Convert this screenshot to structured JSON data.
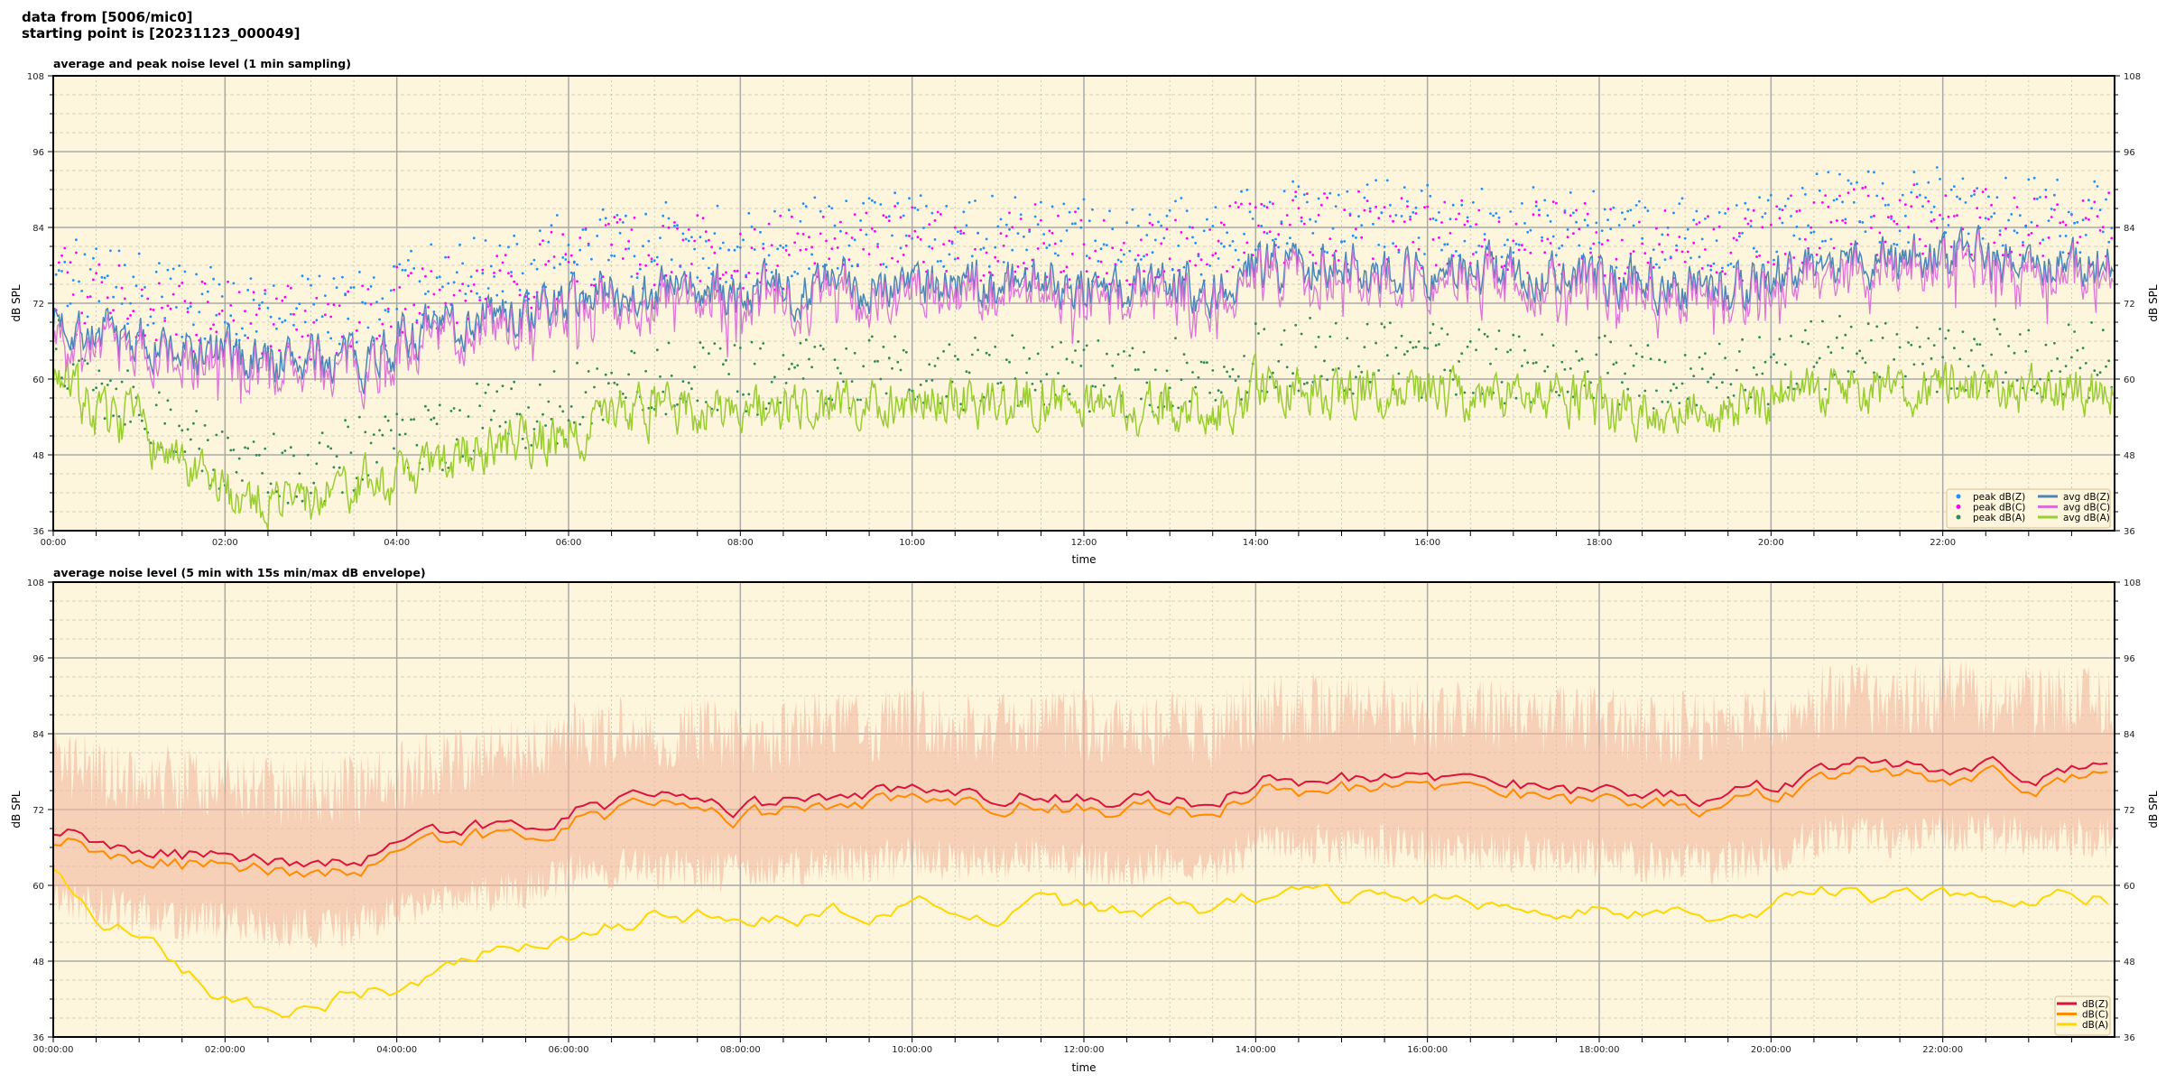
{
  "header": {
    "line1": "data from [5006/mic0]",
    "line2": "starting point is [20231123_000049]"
  },
  "style": {
    "plot_background": "#fdf6dc",
    "major_grid": "#a9a9a9",
    "minor_grid": "#c8c0b0"
  },
  "chart_data": [
    {
      "type": "line+scatter",
      "title": "average and peak noise level (1 min sampling)",
      "xlabel": "time",
      "ylabel": "dB SPL",
      "ylim": [
        36,
        108
      ],
      "yticks": [
        "36",
        "48",
        "60",
        "72",
        "84",
        "96",
        "108"
      ],
      "xlim": [
        "00:00",
        "24:00"
      ],
      "xticks": [
        "00:00",
        "02:00",
        "04:00",
        "06:00",
        "08:00",
        "10:00",
        "12:00",
        "14:00",
        "16:00",
        "18:00",
        "20:00",
        "22:00"
      ],
      "grid": true,
      "legend": "lower-right",
      "x": [
        "00:00",
        "00:30",
        "01:00",
        "01:30",
        "02:00",
        "02:30",
        "03:00",
        "03:30",
        "04:00",
        "04:30",
        "05:00",
        "05:30",
        "06:00",
        "06:30",
        "07:00",
        "07:30",
        "08:00",
        "08:30",
        "09:00",
        "09:30",
        "10:00",
        "10:30",
        "11:00",
        "11:30",
        "12:00",
        "12:30",
        "13:00",
        "13:30",
        "14:00",
        "14:30",
        "15:00",
        "15:30",
        "16:00",
        "16:30",
        "17:00",
        "17:30",
        "18:00",
        "18:30",
        "19:00",
        "19:30",
        "20:00",
        "20:30",
        "21:00",
        "21:30",
        "22:00",
        "22:30",
        "23:00",
        "23:30"
      ],
      "series": [
        {
          "name": "peak dB(Z)",
          "kind": "scatter",
          "color": "#1e90ff",
          "values": [
            78,
            75,
            74,
            72,
            72,
            71,
            71,
            71,
            74,
            76,
            78,
            78,
            81,
            82,
            82,
            82,
            81,
            82,
            83,
            83,
            84,
            83,
            83,
            84,
            83,
            82,
            83,
            82,
            86,
            86,
            86,
            86,
            85,
            85,
            85,
            84,
            84,
            83,
            83,
            83,
            84,
            87,
            87,
            87,
            88,
            87,
            86,
            86
          ]
        },
        {
          "name": "peak dB(C)",
          "kind": "scatter",
          "color": "#ff00ff",
          "values": [
            76,
            73,
            72,
            70,
            70,
            69,
            69,
            69,
            72,
            74,
            76,
            76,
            79,
            80,
            80,
            80,
            79,
            80,
            81,
            81,
            82,
            81,
            81,
            82,
            81,
            80,
            81,
            80,
            84,
            84,
            84,
            84,
            83,
            83,
            83,
            82,
            82,
            81,
            81,
            81,
            82,
            85,
            85,
            85,
            86,
            85,
            84,
            84
          ]
        },
        {
          "name": "peak dB(A)",
          "kind": "scatter",
          "color": "#2e8b57",
          "values": [
            67,
            59,
            58,
            50,
            47,
            46,
            46,
            48,
            49,
            51,
            54,
            55,
            56,
            59,
            60,
            60,
            60,
            60,
            61,
            61,
            62,
            61,
            61,
            62,
            61,
            60,
            61,
            60,
            63,
            64,
            63,
            63,
            63,
            62,
            62,
            62,
            61,
            60,
            60,
            60,
            62,
            64,
            64,
            63,
            64,
            64,
            63,
            63
          ]
        },
        {
          "name": "avg dB(Z)",
          "kind": "line",
          "color": "#4a86b8",
          "values": [
            70,
            67,
            66,
            64,
            64,
            63,
            63,
            63,
            66,
            68,
            70,
            70,
            73,
            74,
            74,
            74,
            73,
            74,
            75,
            75,
            76,
            75,
            75,
            76,
            75,
            74,
            75,
            74,
            78,
            78,
            78,
            78,
            77,
            77,
            77,
            76,
            76,
            75,
            75,
            75,
            76,
            79,
            79,
            79,
            80,
            79,
            78,
            78
          ]
        },
        {
          "name": "avg dB(C)",
          "kind": "line",
          "color": "#da70d6",
          "values": [
            68.5,
            65.5,
            64.5,
            62.5,
            62.5,
            61.5,
            61.5,
            61.5,
            64.5,
            66.5,
            68.5,
            68.5,
            71.5,
            72.5,
            72.5,
            72.5,
            71.5,
            72.5,
            73.5,
            73.5,
            74.5,
            73.5,
            73.5,
            74.5,
            73.5,
            72.5,
            73.5,
            72.5,
            76.5,
            76.5,
            76.5,
            76.5,
            75.5,
            75.5,
            75.5,
            74.5,
            74.5,
            73.5,
            73.5,
            73.5,
            74.5,
            77.5,
            77.5,
            77.5,
            78.5,
            77.5,
            76.5,
            76.5
          ]
        },
        {
          "name": "avg dB(A)",
          "kind": "line",
          "color": "#9acd32",
          "values": [
            62,
            54,
            53,
            45,
            42,
            41,
            41,
            43,
            44,
            46,
            49,
            50,
            51,
            54,
            55,
            55,
            55,
            55,
            56,
            56,
            57,
            56,
            56,
            57,
            56,
            55,
            56,
            55,
            58,
            59,
            58,
            58,
            58,
            57,
            57,
            57,
            56,
            55,
            55,
            55,
            57,
            59,
            59,
            58,
            59,
            59,
            58,
            58
          ]
        }
      ]
    },
    {
      "type": "line+envelope",
      "title": "average noise level (5 min with 15s min/max dB envelope)",
      "xlabel": "time",
      "ylabel": "dB SPL",
      "ylim": [
        36,
        108
      ],
      "yticks": [
        "36",
        "48",
        "60",
        "72",
        "84",
        "96",
        "108"
      ],
      "xlim": [
        "00:00:00",
        "24:00:00"
      ],
      "xticks": [
        "00:00:00",
        "02:00:00",
        "04:00:00",
        "06:00:00",
        "08:00:00",
        "10:00:00",
        "12:00:00",
        "14:00:00",
        "16:00:00",
        "18:00:00",
        "20:00:00",
        "22:00:00"
      ],
      "grid": true,
      "legend": "lower-right",
      "envelope_color": "#f4b8a0",
      "x": [
        "00:00",
        "00:30",
        "01:00",
        "01:30",
        "02:00",
        "02:30",
        "03:00",
        "03:30",
        "04:00",
        "04:30",
        "05:00",
        "05:30",
        "06:00",
        "06:30",
        "07:00",
        "07:30",
        "08:00",
        "08:30",
        "09:00",
        "09:30",
        "10:00",
        "10:30",
        "11:00",
        "11:30",
        "12:00",
        "12:30",
        "13:00",
        "13:30",
        "14:00",
        "14:30",
        "15:00",
        "15:30",
        "16:00",
        "16:30",
        "17:00",
        "17:30",
        "18:00",
        "18:30",
        "19:00",
        "19:30",
        "20:00",
        "20:30",
        "21:00",
        "21:30",
        "22:00",
        "22:30",
        "23:00",
        "23:30"
      ],
      "series": [
        {
          "name": "dB(Z)",
          "kind": "line",
          "color": "#dc143c",
          "values": [
            69,
            67,
            66,
            65,
            65,
            64,
            64,
            64,
            66,
            68,
            69,
            70,
            72,
            73,
            73,
            73,
            72,
            73,
            74,
            74,
            75,
            74,
            74,
            75,
            74,
            73,
            74,
            73,
            77,
            77,
            77,
            77,
            76,
            76,
            76,
            75,
            75,
            74,
            74,
            74,
            75,
            78,
            79,
            78,
            79,
            79,
            78,
            78
          ]
        },
        {
          "name": "dB(C)",
          "kind": "line",
          "color": "#ff8c00",
          "values": [
            67.5,
            65.5,
            64.5,
            63.5,
            63.5,
            62.5,
            62.5,
            62.5,
            64.5,
            66.5,
            67.5,
            68.5,
            70.5,
            71.5,
            71.5,
            71.5,
            70.5,
            71.5,
            72.5,
            72.5,
            73.5,
            72.5,
            72.5,
            73.5,
            72.5,
            71.5,
            72.5,
            71.5,
            75.5,
            75.5,
            75.5,
            75.5,
            74.5,
            74.5,
            74.5,
            73.5,
            73.5,
            72.5,
            72.5,
            72.5,
            73.5,
            76.5,
            77.5,
            76.5,
            77.5,
            77.5,
            76.5,
            76.5
          ]
        },
        {
          "name": "dB(A)",
          "kind": "line",
          "color": "#ffd700",
          "values": [
            63,
            54,
            53,
            46,
            42,
            41,
            41,
            43,
            44,
            46,
            49,
            50,
            51,
            54,
            55,
            55,
            55,
            55,
            56,
            56,
            57,
            56,
            56,
            57,
            56,
            55,
            56,
            55,
            58,
            59,
            58,
            58,
            58,
            57,
            57,
            57,
            56,
            55,
            55,
            55,
            57,
            59,
            59,
            58,
            59,
            59,
            58,
            58
          ]
        }
      ]
    }
  ]
}
